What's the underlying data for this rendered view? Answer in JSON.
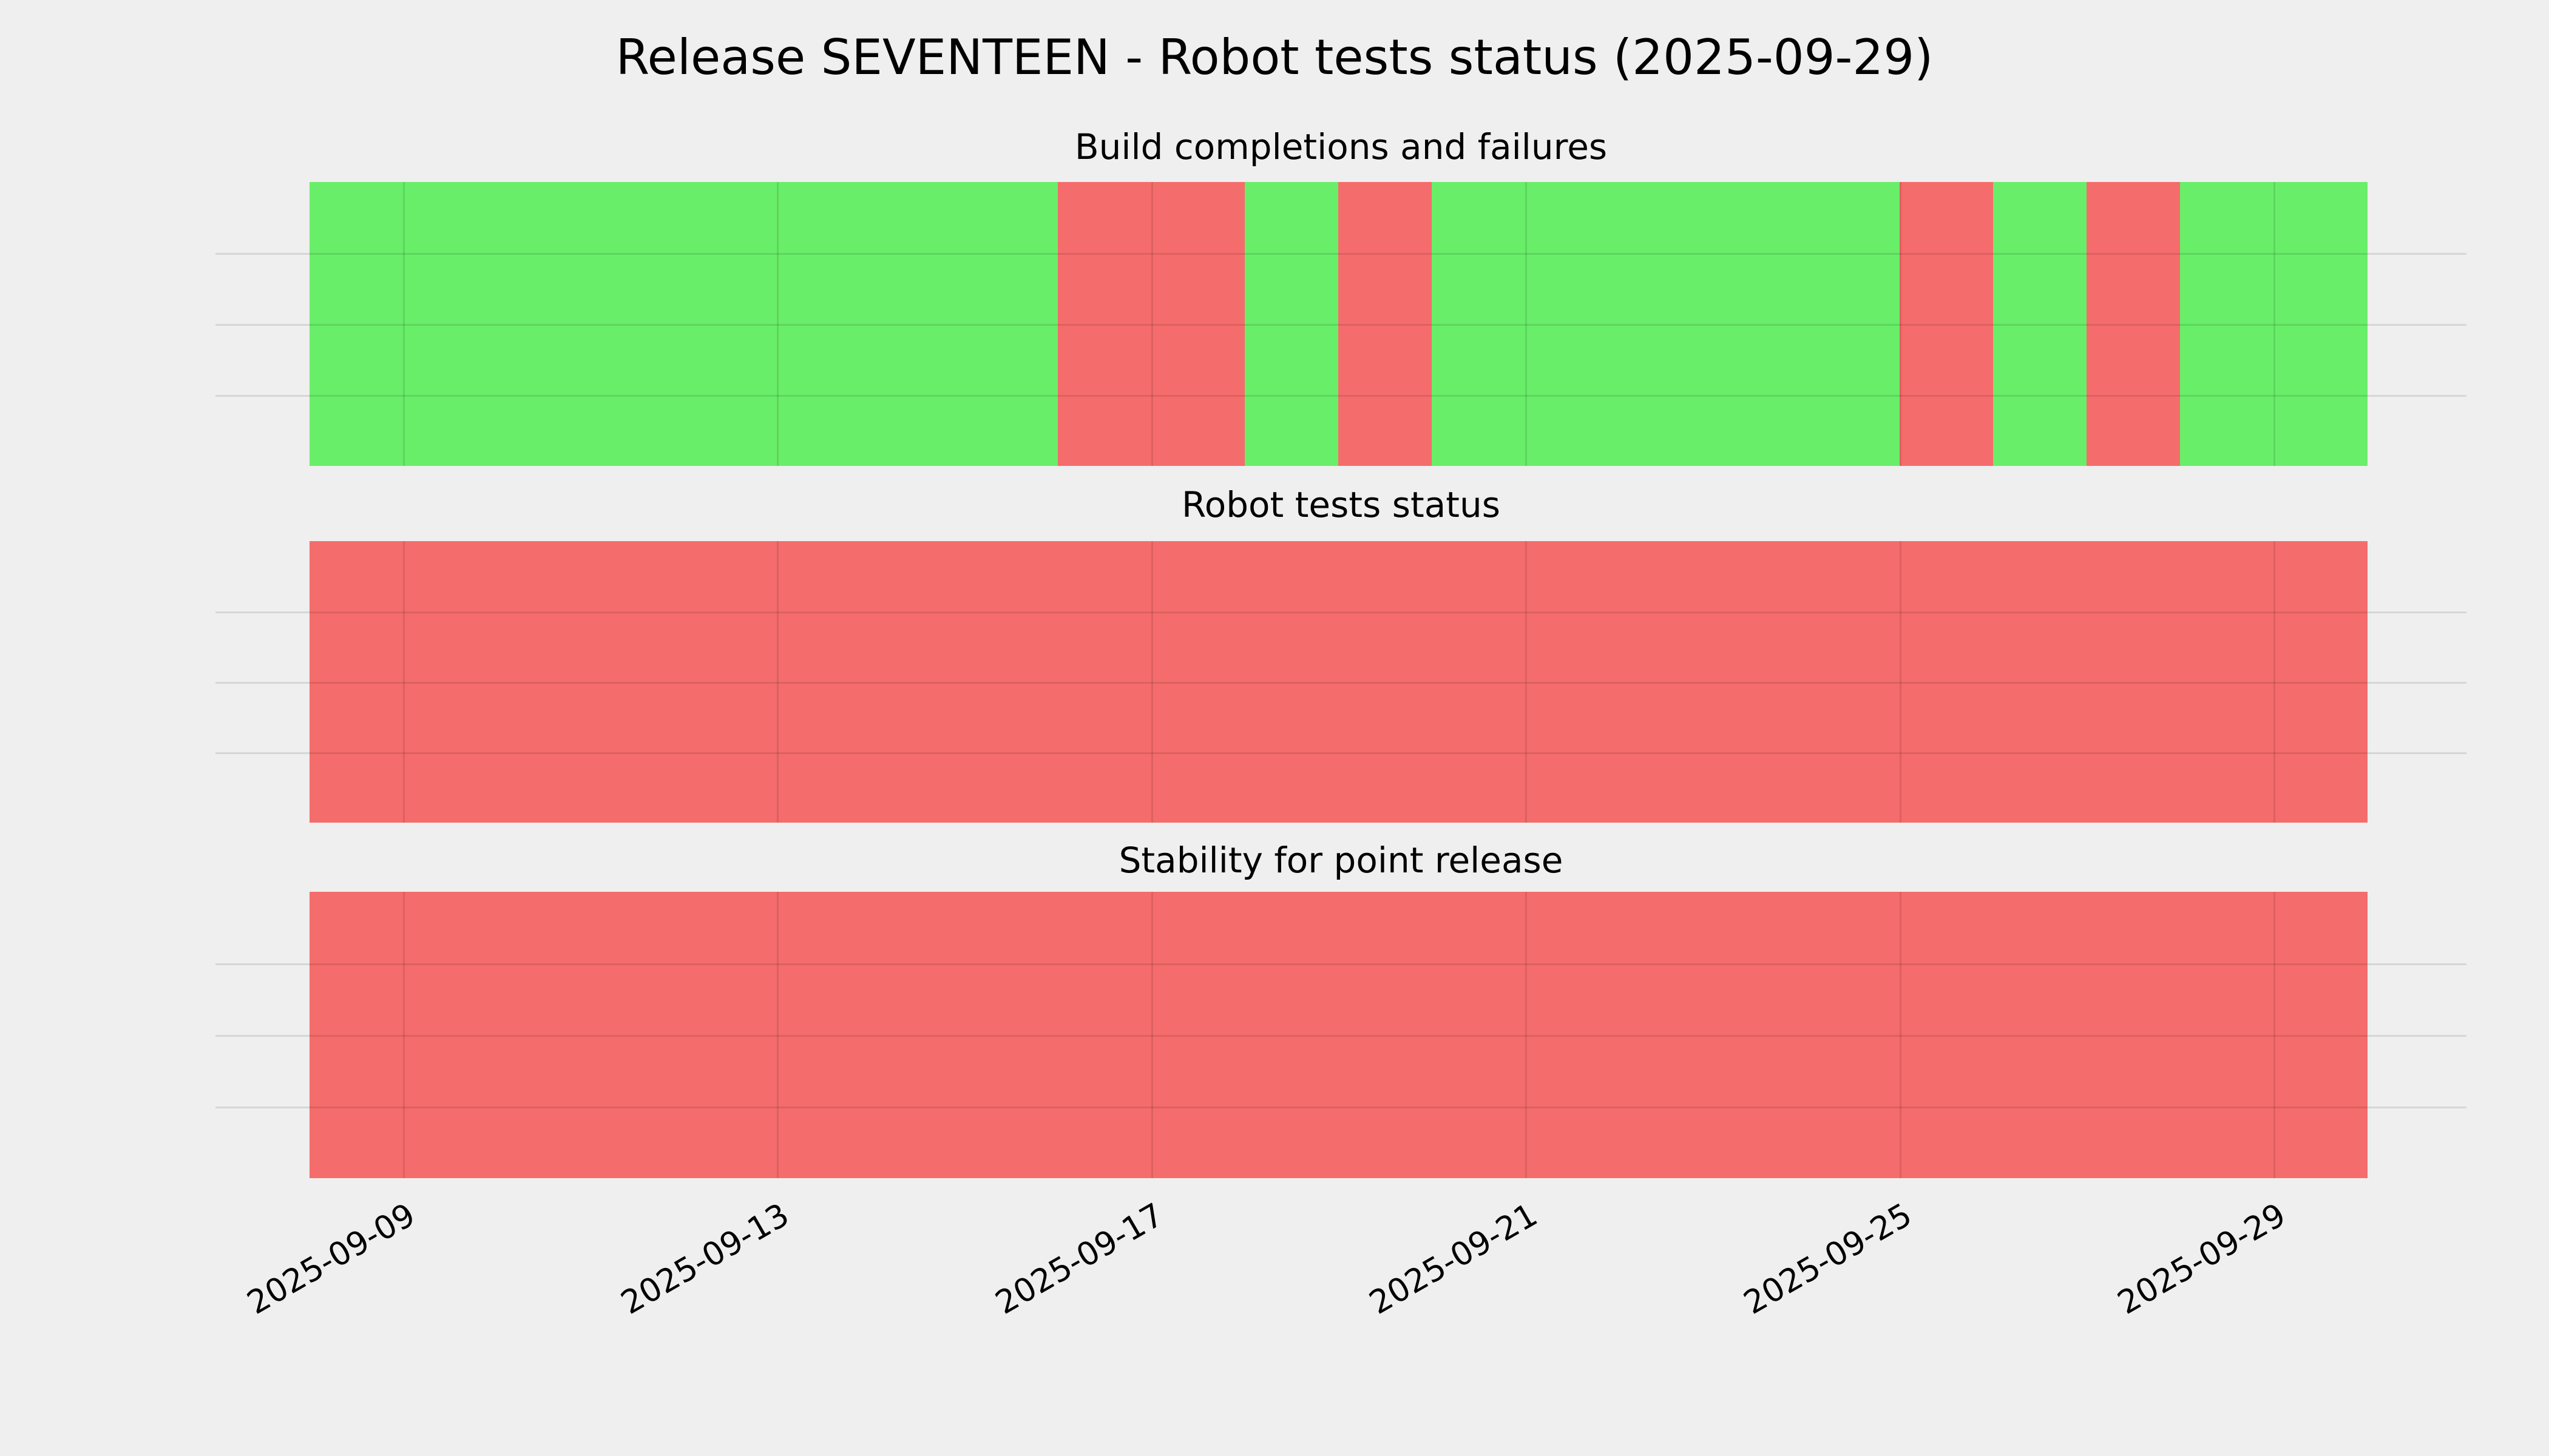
{
  "figure": {
    "title": "Release SEVENTEEN - Robot tests status (2025-09-29)",
    "background": "#efefef"
  },
  "colors": {
    "success": "#69ee69",
    "failure": "#f56c6c",
    "gridline": "#d7d7d7"
  },
  "x_axis": {
    "tick_labels": [
      "2025-09-09",
      "2025-09-13",
      "2025-09-17",
      "2025-09-21",
      "2025-09-25",
      "2025-09-29"
    ]
  },
  "chart_data": [
    {
      "type": "bar",
      "title": "Build completions and failures",
      "x": [
        "2025-09-08",
        "2025-09-09",
        "2025-09-10",
        "2025-09-11",
        "2025-09-12",
        "2025-09-13",
        "2025-09-14",
        "2025-09-15",
        "2025-09-16",
        "2025-09-17",
        "2025-09-18",
        "2025-09-19",
        "2025-09-20",
        "2025-09-21",
        "2025-09-22",
        "2025-09-23",
        "2025-09-24",
        "2025-09-25",
        "2025-09-26",
        "2025-09-27",
        "2025-09-28",
        "2025-09-29"
      ],
      "statuses": [
        "success",
        "success",
        "success",
        "success",
        "success",
        "success",
        "success",
        "success",
        "failure",
        "failure",
        "success",
        "failure",
        "success",
        "success",
        "success",
        "success",
        "success",
        "failure",
        "success",
        "failure",
        "success",
        "success"
      ],
      "x_range": [
        "2025-09-08",
        "2025-09-30"
      ],
      "grid": true,
      "yticks_visible": false,
      "legend": "none"
    },
    {
      "type": "bar",
      "title": "Robot tests status",
      "x": [
        "2025-09-08",
        "2025-09-09",
        "2025-09-10",
        "2025-09-11",
        "2025-09-12",
        "2025-09-13",
        "2025-09-14",
        "2025-09-15",
        "2025-09-16",
        "2025-09-17",
        "2025-09-18",
        "2025-09-19",
        "2025-09-20",
        "2025-09-21",
        "2025-09-22",
        "2025-09-23",
        "2025-09-24",
        "2025-09-25",
        "2025-09-26",
        "2025-09-27",
        "2025-09-28",
        "2025-09-29"
      ],
      "statuses": [
        "failure",
        "failure",
        "failure",
        "failure",
        "failure",
        "failure",
        "failure",
        "failure",
        "failure",
        "failure",
        "failure",
        "failure",
        "failure",
        "failure",
        "failure",
        "failure",
        "failure",
        "failure",
        "failure",
        "failure",
        "failure",
        "failure"
      ],
      "x_range": [
        "2025-09-08",
        "2025-09-30"
      ],
      "grid": true,
      "yticks_visible": false,
      "legend": "none"
    },
    {
      "type": "bar",
      "title": "Stability for point release",
      "x": [
        "2025-09-08",
        "2025-09-09",
        "2025-09-10",
        "2025-09-11",
        "2025-09-12",
        "2025-09-13",
        "2025-09-14",
        "2025-09-15",
        "2025-09-16",
        "2025-09-17",
        "2025-09-18",
        "2025-09-19",
        "2025-09-20",
        "2025-09-21",
        "2025-09-22",
        "2025-09-23",
        "2025-09-24",
        "2025-09-25",
        "2025-09-26",
        "2025-09-27",
        "2025-09-28",
        "2025-09-29"
      ],
      "statuses": [
        "failure",
        "failure",
        "failure",
        "failure",
        "failure",
        "failure",
        "failure",
        "failure",
        "failure",
        "failure",
        "failure",
        "failure",
        "failure",
        "failure",
        "failure",
        "failure",
        "failure",
        "failure",
        "failure",
        "failure",
        "failure",
        "failure"
      ],
      "x_range": [
        "2025-09-08",
        "2025-09-30"
      ],
      "grid": true,
      "yticks_visible": false,
      "legend": "none"
    }
  ]
}
